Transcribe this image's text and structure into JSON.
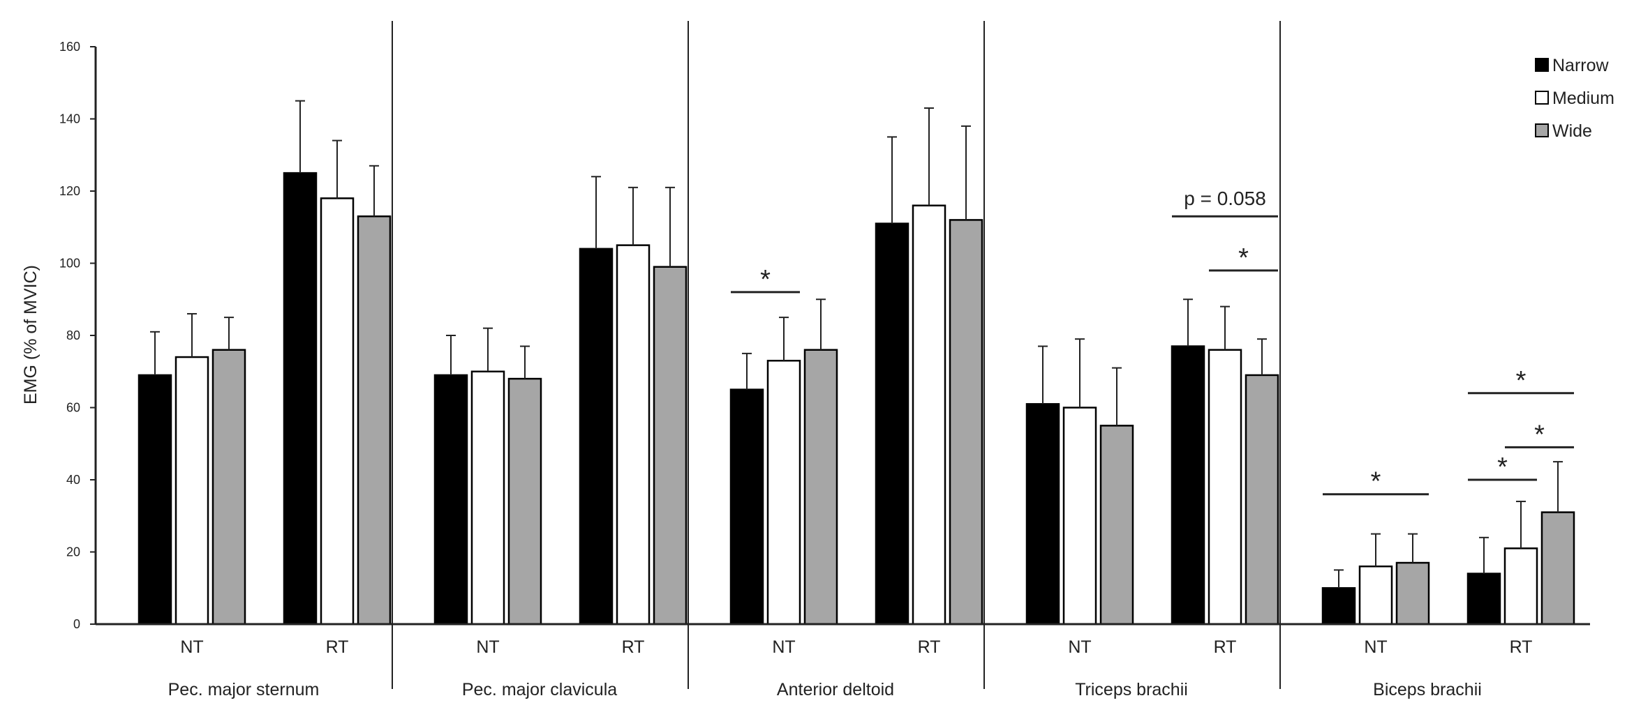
{
  "chart_data": {
    "type": "bar",
    "ylabel": "EMG (% of MVIC)",
    "ylim": [
      0,
      160
    ],
    "yticks": [
      "0",
      "20",
      "40",
      "60",
      "80",
      "100",
      "120",
      "140",
      "160"
    ],
    "grid": false,
    "legend_position": "top-right",
    "series": [
      {
        "name": "Narrow",
        "color": "#000000"
      },
      {
        "name": "Medium",
        "color": "#ffffff"
      },
      {
        "name": "Wide",
        "color": "#a6a6a6"
      }
    ],
    "groups": [
      {
        "label": "Pec. major sternum",
        "conditions": [
          {
            "label": "NT",
            "values": [
              69,
              74,
              76
            ],
            "errors": [
              12,
              12,
              9
            ]
          },
          {
            "label": "RT",
            "values": [
              125,
              118,
              113
            ],
            "errors": [
              20,
              16,
              14
            ]
          }
        ]
      },
      {
        "label": "Pec. major clavicula",
        "conditions": [
          {
            "label": "NT",
            "values": [
              69,
              70,
              68
            ],
            "errors": [
              11,
              12,
              9
            ]
          },
          {
            "label": "RT",
            "values": [
              104,
              105,
              99
            ],
            "errors": [
              20,
              16,
              22
            ]
          }
        ]
      },
      {
        "label": "Anterior deltoid",
        "conditions": [
          {
            "label": "NT",
            "values": [
              65,
              73,
              76
            ],
            "errors": [
              10,
              12,
              14
            ]
          },
          {
            "label": "RT",
            "values": [
              111,
              116,
              112
            ],
            "errors": [
              24,
              27,
              26
            ]
          }
        ]
      },
      {
        "label": "Triceps brachii",
        "conditions": [
          {
            "label": "NT",
            "values": [
              61,
              60,
              55
            ],
            "errors": [
              16,
              19,
              16
            ]
          },
          {
            "label": "RT",
            "values": [
              77,
              76,
              69
            ],
            "errors": [
              13,
              12,
              10
            ]
          }
        ]
      },
      {
        "label": "Biceps brachii",
        "conditions": [
          {
            "label": "NT",
            "values": [
              10,
              16,
              17
            ],
            "errors": [
              5,
              9,
              8
            ]
          },
          {
            "label": "RT",
            "values": [
              14,
              21,
              31
            ],
            "errors": [
              10,
              13,
              14
            ]
          }
        ]
      }
    ],
    "annotations": [
      {
        "group": 2,
        "condition": 0,
        "from": 0,
        "to": 1,
        "text": "*",
        "y": 92
      },
      {
        "group": 3,
        "condition": 1,
        "from": 0,
        "to": 2,
        "text": "p = 0.058",
        "y": 113
      },
      {
        "group": 3,
        "condition": 1,
        "from": 1,
        "to": 2,
        "text": "*",
        "y": 98
      },
      {
        "group": 4,
        "condition": 0,
        "from": 0,
        "to": 2,
        "text": "*",
        "y": 36
      },
      {
        "group": 4,
        "condition": 1,
        "from": 0,
        "to": 2,
        "text": "*",
        "y": 64
      },
      {
        "group": 4,
        "condition": 1,
        "from": 1,
        "to": 2,
        "text": "*",
        "y": 49
      },
      {
        "group": 4,
        "condition": 1,
        "from": 0,
        "to": 1,
        "text": "*",
        "y": 40
      }
    ]
  }
}
